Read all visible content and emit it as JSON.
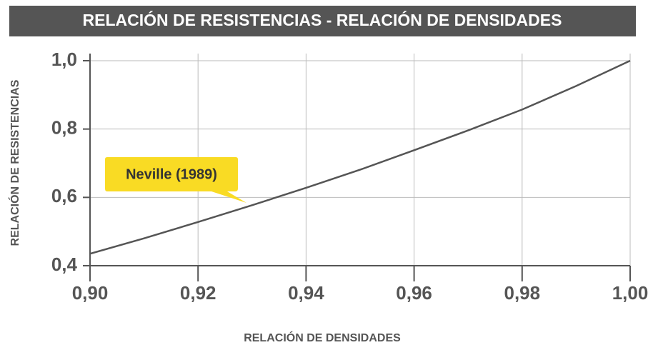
{
  "chart_data": {
    "type": "line",
    "title": "RELACIÓN DE RESISTENCIAS - RELACIÓN DE DENSIDADES",
    "x_label": "RELACIÓN DE DENSIDADES",
    "y_label": "RELACIÓN DE RESISTENCIAS",
    "annotation": "Neville (1989)",
    "x": [
      0.9,
      0.91,
      0.92,
      0.93,
      0.94,
      0.95,
      0.96,
      0.97,
      0.98,
      0.99,
      1.0
    ],
    "series": [
      {
        "name": "Neville (1989)",
        "color": "#555555",
        "values": [
          0.435,
          0.48,
          0.528,
          0.577,
          0.628,
          0.681,
          0.738,
          0.796,
          0.857,
          0.926,
          1.0
        ]
      }
    ],
    "xlim": [
      0.9,
      1.0
    ],
    "ylim": [
      0.4,
      1.0
    ],
    "xticks": [
      {
        "value": 0.9,
        "label": "0,90"
      },
      {
        "value": 0.92,
        "label": "0,92"
      },
      {
        "value": 0.94,
        "label": "0,94"
      },
      {
        "value": 0.96,
        "label": "0,96"
      },
      {
        "value": 0.98,
        "label": "0,98"
      },
      {
        "value": 1.0,
        "label": "1,00"
      }
    ],
    "yticks": [
      {
        "value": 0.4,
        "label": "0,4"
      },
      {
        "value": 0.6,
        "label": "0,6"
      },
      {
        "value": 0.8,
        "label": "0,8"
      },
      {
        "value": 1.0,
        "label": "1,0"
      }
    ],
    "grid": true,
    "annotation_color": "#f9db24"
  }
}
